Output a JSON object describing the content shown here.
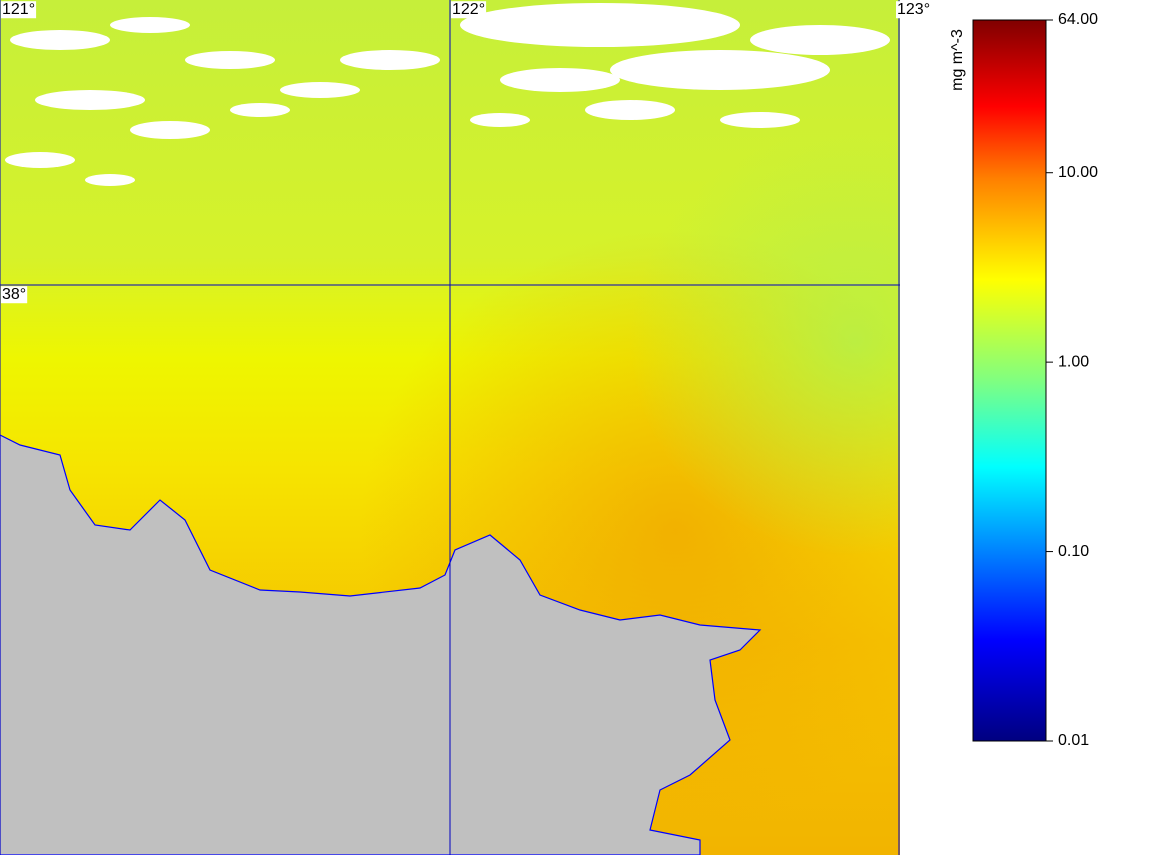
{
  "map": {
    "lonlim": [
      121,
      123.0
    ],
    "latlim": [
      37.0,
      38.5
    ],
    "lon_ticks": [
      {
        "value": 121,
        "label": "121°"
      },
      {
        "value": 122,
        "label": "122°"
      },
      {
        "value": 123,
        "label": "123°"
      }
    ],
    "lat_ticks": [
      {
        "value": 38,
        "label": "38°"
      }
    ]
  },
  "colorbar": {
    "unit": "mg m^-3",
    "log_scale": true,
    "clim": [
      0.01,
      64
    ],
    "ticks": [
      {
        "value": 64,
        "label": "64.00"
      },
      {
        "value": 10,
        "label": "10.00"
      },
      {
        "value": 1,
        "label": "1.00"
      },
      {
        "value": 0.1,
        "label": "0.10"
      },
      {
        "value": 0.01,
        "label": "0.01"
      }
    ]
  }
}
